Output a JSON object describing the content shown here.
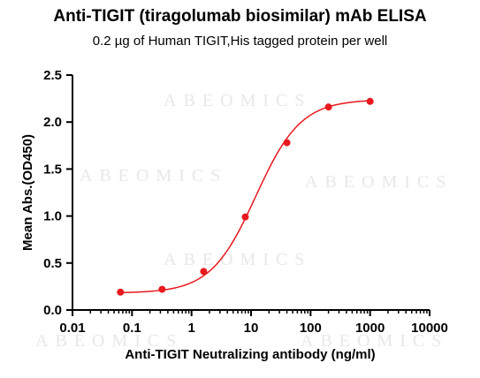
{
  "chart_data": {
    "type": "scatter",
    "title": "Anti-TIGIT (tiragolumab biosimilar) mAb ELISA",
    "subtitle": "0.2 µg of Human TIGIT,His tagged protein per well",
    "xlabel": "Anti-TIGIT Neutralizing antibody (ng/ml)",
    "ylabel": "Mean Abs.(OD450)",
    "x_scale": "log",
    "xlim": [
      0.01,
      10000
    ],
    "ylim": [
      0,
      2.5
    ],
    "x_ticks": [
      "0.01",
      "0.1",
      "1",
      "10",
      "100",
      "1000",
      "10000"
    ],
    "y_ticks": [
      "0.0",
      "0.5",
      "1.0",
      "1.5",
      "2.0",
      "2.5"
    ],
    "series": [
      {
        "color": "#e8191e",
        "x": [
          0.064,
          0.32,
          1.6,
          8,
          40,
          200,
          1000
        ],
        "y": [
          0.19,
          0.22,
          0.41,
          0.99,
          1.78,
          2.16,
          2.22
        ]
      }
    ],
    "fit": {
      "bottom": 0.18,
      "top": 2.24,
      "ec50": 12,
      "hill": 1.15
    },
    "grid": false,
    "watermark": "ABEOMICS"
  }
}
